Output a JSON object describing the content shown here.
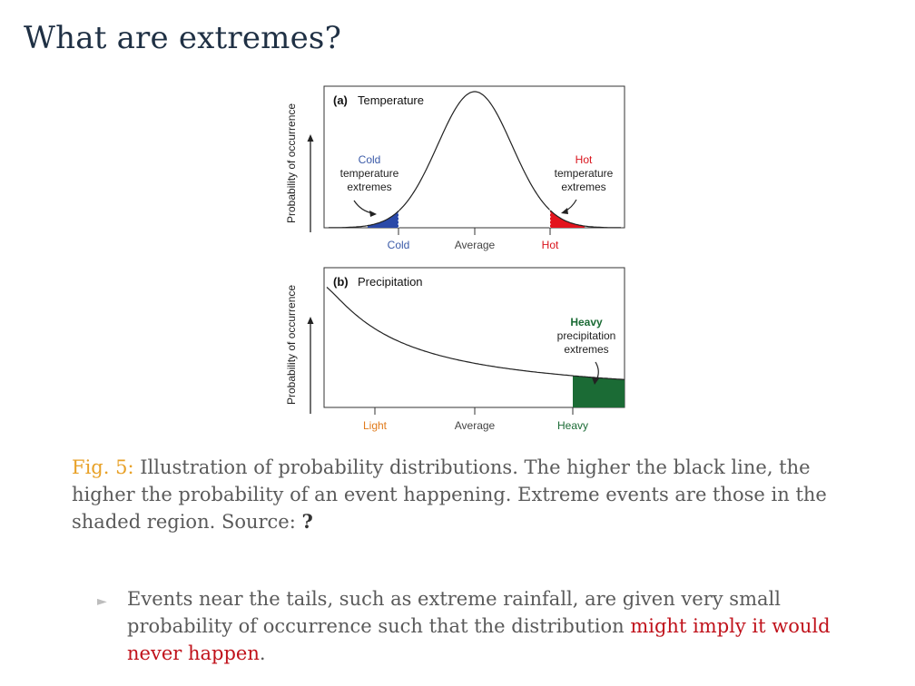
{
  "slide": {
    "title": "What are extremes?"
  },
  "figure": {
    "panel_a": {
      "label": "(a)",
      "title": "Temperature",
      "ylabel": "Probability of occurrence",
      "ticks": [
        "Cold",
        "Average",
        "Hot"
      ],
      "cold_note": [
        "Cold",
        "temperature",
        "extremes"
      ],
      "hot_note": [
        "Hot",
        "temperature",
        "extremes"
      ]
    },
    "panel_b": {
      "label": "(b)",
      "title": "Precipitation",
      "ylabel": "Probability of occurrence",
      "ticks": [
        "Light",
        "Average",
        "Heavy"
      ],
      "heavy_note": [
        "Heavy",
        "precipitation",
        "extremes"
      ]
    },
    "colors": {
      "cold": "#2a49a8",
      "hot": "#e3141d",
      "heavy": "#1b6b35",
      "light": "#e07a1b",
      "cold_text": "#3a5aa8",
      "hot_text": "#d9141c",
      "heavy_text": "#1b6b35"
    }
  },
  "caption": {
    "label": "Fig. 5:",
    "text": "Illustration of probability distributions. The higher the black line, the higher the probability of an event happening. Extreme events are those in the shaded region. Source:",
    "citation": "?"
  },
  "bullets": [
    {
      "text_before": "Events near the tails, such as extreme rainfall, are given very small probability of occurrence such that the distribution ",
      "highlight": "might imply it would never happen",
      "text_after": "."
    }
  ]
}
